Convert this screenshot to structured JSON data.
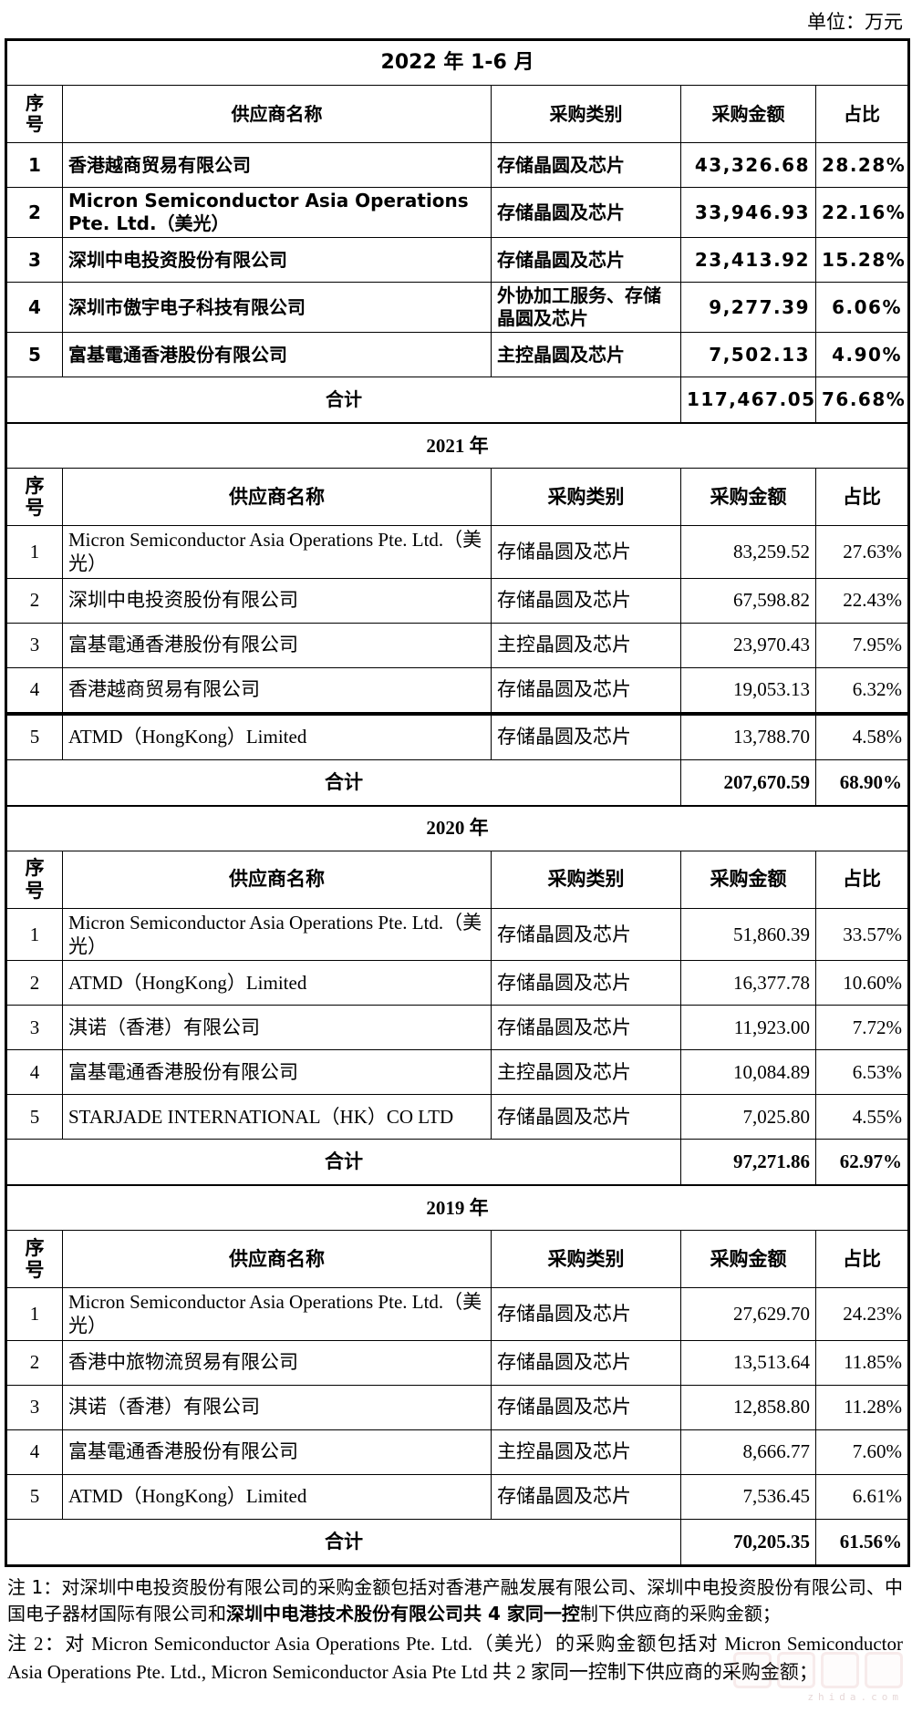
{
  "unit_label": "单位：万元",
  "column_headers": {
    "index": "序号",
    "supplier": "供应商名称",
    "category": "采购类别",
    "amount": "采购金额",
    "share": "占比"
  },
  "total_label": "合计",
  "tables": [
    {
      "period": "2022 年 1-6 月",
      "style": "sans",
      "rows": [
        {
          "no": "1",
          "supplier": "香港越商贸易有限公司",
          "category": "存储晶圆及芯片",
          "amount": "43,326.68",
          "share": "28.28%"
        },
        {
          "no": "2",
          "supplier": "Micron Semiconductor Asia Operations Pte. Ltd.（美光）",
          "category": "存储晶圆及芯片",
          "amount": "33,946.93",
          "share": "22.16%"
        },
        {
          "no": "3",
          "supplier": "深圳中电投资股份有限公司",
          "category": "存储晶圆及芯片",
          "amount": "23,413.92",
          "share": "15.28%"
        },
        {
          "no": "4",
          "supplier": "深圳市傲宇电子科技有限公司",
          "category": "外协加工服务、存储晶圆及芯片",
          "amount": "9,277.39",
          "share": "6.06%"
        },
        {
          "no": "5",
          "supplier": "富基電通香港股份有限公司",
          "category": "主控晶圆及芯片",
          "amount": "7,502.13",
          "share": "4.90%"
        }
      ],
      "total": {
        "amount": "117,467.05",
        "share": "76.68%"
      }
    },
    {
      "period": "2021 年",
      "style": "serif",
      "rows": [
        {
          "no": "1",
          "supplier": "Micron Semiconductor Asia Operations Pte. Ltd.（美光）",
          "category": "存储晶圆及芯片",
          "amount": "83,259.52",
          "share": "27.63%"
        },
        {
          "no": "2",
          "supplier": "深圳中电投资股份有限公司",
          "category": "存储晶圆及芯片",
          "amount": "67,598.82",
          "share": "22.43%"
        },
        {
          "no": "3",
          "supplier": "富基電通香港股份有限公司",
          "category": "主控晶圆及芯片",
          "amount": "23,970.43",
          "share": "7.95%"
        },
        {
          "no": "4",
          "supplier": "香港越商贸易有限公司",
          "category": "存储晶圆及芯片",
          "amount": "19,053.13",
          "share": "6.32%"
        },
        {
          "no": "5",
          "supplier": "ATMD（HongKong）Limited",
          "category": "存储晶圆及芯片",
          "amount": "13,788.70",
          "share": "4.58%"
        }
      ],
      "total": {
        "amount": "207,670.59",
        "share": "68.90%"
      }
    },
    {
      "period": "2020 年",
      "style": "serif",
      "rows": [
        {
          "no": "1",
          "supplier": "Micron Semiconductor Asia Operations Pte. Ltd.（美光）",
          "category": "存储晶圆及芯片",
          "amount": "51,860.39",
          "share": "33.57%"
        },
        {
          "no": "2",
          "supplier": "ATMD（HongKong）Limited",
          "category": "存储晶圆及芯片",
          "amount": "16,377.78",
          "share": "10.60%"
        },
        {
          "no": "3",
          "supplier": "淇诺（香港）有限公司",
          "category": "存储晶圆及芯片",
          "amount": "11,923.00",
          "share": "7.72%"
        },
        {
          "no": "4",
          "supplier": "富基電通香港股份有限公司",
          "category": "主控晶圆及芯片",
          "amount": "10,084.89",
          "share": "6.53%"
        },
        {
          "no": "5",
          "supplier": "STARJADE INTERNATIONAL（HK）CO LTD",
          "category": "存储晶圆及芯片",
          "amount": "7,025.80",
          "share": "4.55%"
        }
      ],
      "total": {
        "amount": "97,271.86",
        "share": "62.97%"
      }
    },
    {
      "period": "2019 年",
      "style": "serif",
      "rows": [
        {
          "no": "1",
          "supplier": "Micron Semiconductor Asia Operations Pte. Ltd.（美光）",
          "category": "存储晶圆及芯片",
          "amount": "27,629.70",
          "share": "24.23%"
        },
        {
          "no": "2",
          "supplier": "香港中旅物流贸易有限公司",
          "category": "存储晶圆及芯片",
          "amount": "13,513.64",
          "share": "11.85%"
        },
        {
          "no": "3",
          "supplier": "淇诺（香港）有限公司",
          "category": "存储晶圆及芯片",
          "amount": "12,858.80",
          "share": "11.28%"
        },
        {
          "no": "4",
          "supplier": "富基電通香港股份有限公司",
          "category": "主控晶圆及芯片",
          "amount": "8,666.77",
          "share": "7.60%"
        },
        {
          "no": "5",
          "supplier": "ATMD（HongKong）Limited",
          "category": "存储晶圆及芯片",
          "amount": "7,536.45",
          "share": "6.61%"
        }
      ],
      "total": {
        "amount": "70,205.35",
        "share": "61.56%"
      }
    }
  ],
  "notes": [
    {
      "font": "sans",
      "segments": [
        {
          "text": "注 1：对深圳中电投资股份有限公司的采购金额包括对香港产融发展有限公司、深圳中电投资股份有限公司、中国电子器材国际有限公司和",
          "bold": false
        },
        {
          "text": "深圳中电港技术股份有限公司共 4 家同一控",
          "bold": true
        },
        {
          "text": "制下供应商的采购金额；",
          "bold": false
        }
      ]
    },
    {
      "font": "serif",
      "segments": [
        {
          "text": "注 2：对 Micron Semiconductor Asia Operations Pte. Ltd.（美光）的采购金额包括对 Micron Semiconductor Asia Operations Pte. Ltd., Micron Semiconductor Asia Pte Ltd 共 2 家同一控制下供应商的采购金额；",
          "bold": false
        }
      ]
    }
  ],
  "watermark": {
    "url_text": "zhida.com"
  }
}
